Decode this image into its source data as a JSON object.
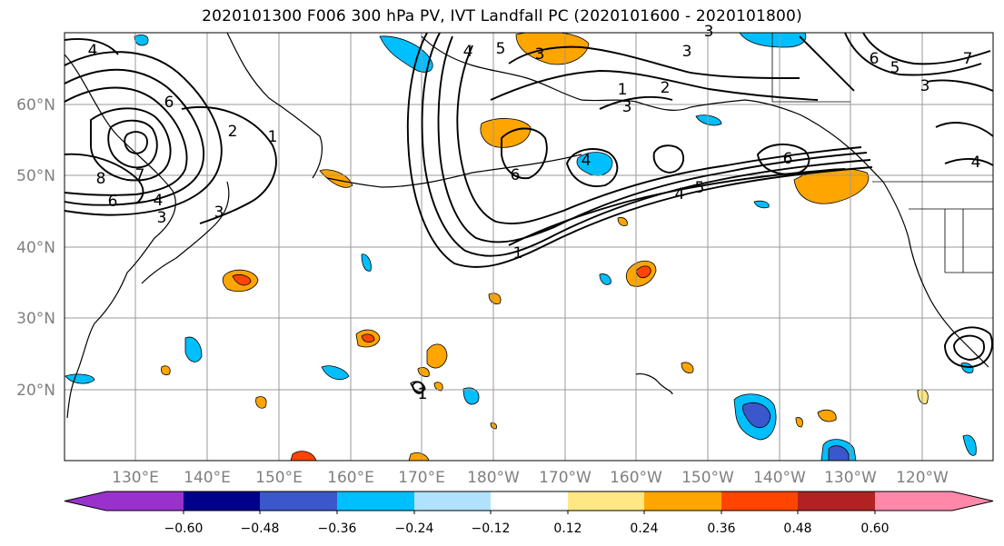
{
  "title": "2020101300 F006 300 hPa PV, IVT Landfall PC (2020101600 - 2020101800)",
  "lat_labels": [
    "60°N",
    "50°N",
    "40°N",
    "30°N",
    "20°N"
  ],
  "lon_labels": [
    "130°E",
    "140°E",
    "150°E",
    "160°E",
    "170°E",
    "180°W",
    "170°W",
    "160°W",
    "150°W",
    "140°W",
    "130°W",
    "120°W"
  ],
  "contour_labels": [
    "4",
    "3",
    "6",
    "8",
    "7",
    "6",
    "4",
    "3",
    "1",
    "2",
    "5",
    "3",
    "1",
    "2",
    "3",
    "6",
    "4",
    "4",
    "5",
    "6",
    "1",
    "1",
    "3",
    "3",
    "4",
    "3",
    "6",
    "5",
    "7",
    "4"
  ],
  "colorbar": {
    "ticks": [
      "−0.60",
      "−0.48",
      "−0.36",
      "−0.24",
      "−0.12",
      "0.12",
      "0.24",
      "0.36",
      "0.48",
      "0.60"
    ],
    "colors": [
      "#9932cc",
      "#00008b",
      "#3a57cc",
      "#00bfff",
      "#b0e2ff",
      "#ffffff",
      "#ffe883",
      "#ffa500",
      "#ff4500",
      "#b22222",
      "#ff88aa"
    ]
  },
  "palette": {
    "contour": "#000000",
    "coast": "#000000",
    "grid": "#9a9a9a",
    "tick_text": "#7f7f7f"
  }
}
